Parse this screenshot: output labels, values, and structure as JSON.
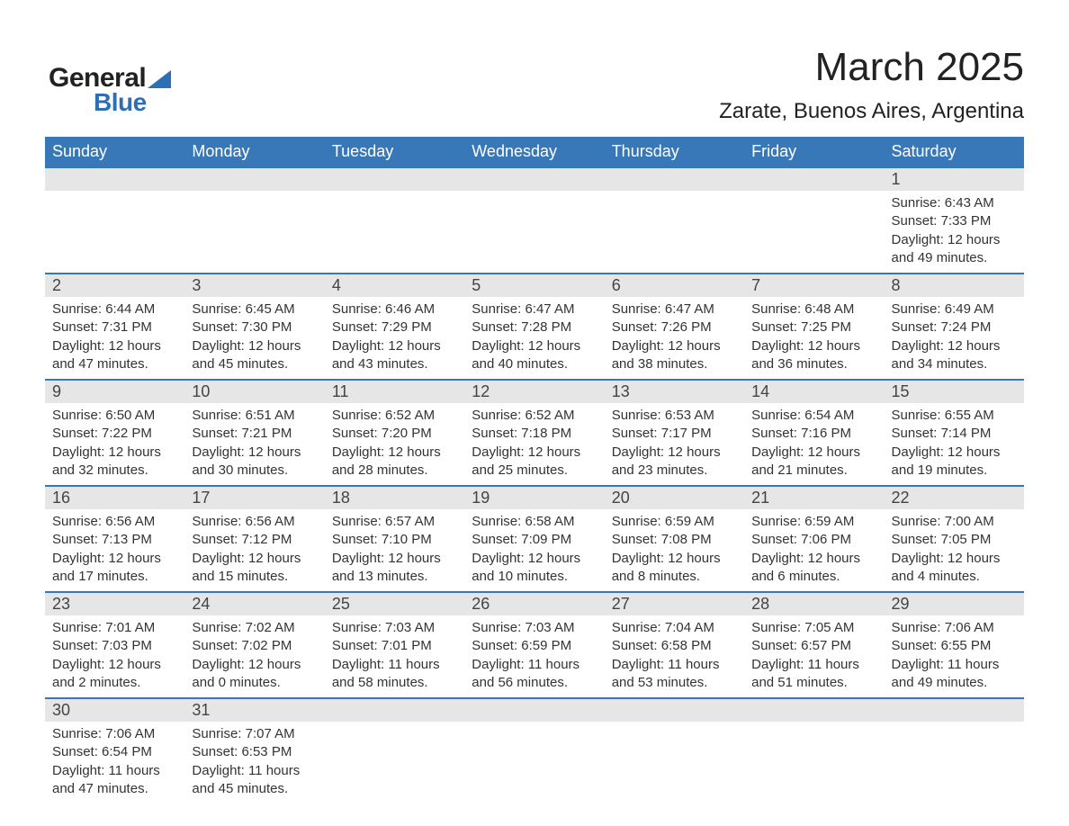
{
  "logo": {
    "text_general": "General",
    "text_blue": "Blue",
    "brand_color": "#2d6fb5"
  },
  "title": {
    "month": "March 2025",
    "location": "Zarate, Buenos Aires, Argentina"
  },
  "calendar": {
    "header_bg": "#3978b8",
    "header_fg": "#ffffff",
    "daynum_bg": "#e6e6e6",
    "rule_color": "#3978b8",
    "text_color": "#333333",
    "day_headers": [
      "Sunday",
      "Monday",
      "Tuesday",
      "Wednesday",
      "Thursday",
      "Friday",
      "Saturday"
    ],
    "weeks": [
      [
        null,
        null,
        null,
        null,
        null,
        null,
        {
          "n": "1",
          "sunrise": "Sunrise: 6:43 AM",
          "sunset": "Sunset: 7:33 PM",
          "day1": "Daylight: 12 hours",
          "day2": "and 49 minutes."
        }
      ],
      [
        {
          "n": "2",
          "sunrise": "Sunrise: 6:44 AM",
          "sunset": "Sunset: 7:31 PM",
          "day1": "Daylight: 12 hours",
          "day2": "and 47 minutes."
        },
        {
          "n": "3",
          "sunrise": "Sunrise: 6:45 AM",
          "sunset": "Sunset: 7:30 PM",
          "day1": "Daylight: 12 hours",
          "day2": "and 45 minutes."
        },
        {
          "n": "4",
          "sunrise": "Sunrise: 6:46 AM",
          "sunset": "Sunset: 7:29 PM",
          "day1": "Daylight: 12 hours",
          "day2": "and 43 minutes."
        },
        {
          "n": "5",
          "sunrise": "Sunrise: 6:47 AM",
          "sunset": "Sunset: 7:28 PM",
          "day1": "Daylight: 12 hours",
          "day2": "and 40 minutes."
        },
        {
          "n": "6",
          "sunrise": "Sunrise: 6:47 AM",
          "sunset": "Sunset: 7:26 PM",
          "day1": "Daylight: 12 hours",
          "day2": "and 38 minutes."
        },
        {
          "n": "7",
          "sunrise": "Sunrise: 6:48 AM",
          "sunset": "Sunset: 7:25 PM",
          "day1": "Daylight: 12 hours",
          "day2": "and 36 minutes."
        },
        {
          "n": "8",
          "sunrise": "Sunrise: 6:49 AM",
          "sunset": "Sunset: 7:24 PM",
          "day1": "Daylight: 12 hours",
          "day2": "and 34 minutes."
        }
      ],
      [
        {
          "n": "9",
          "sunrise": "Sunrise: 6:50 AM",
          "sunset": "Sunset: 7:22 PM",
          "day1": "Daylight: 12 hours",
          "day2": "and 32 minutes."
        },
        {
          "n": "10",
          "sunrise": "Sunrise: 6:51 AM",
          "sunset": "Sunset: 7:21 PM",
          "day1": "Daylight: 12 hours",
          "day2": "and 30 minutes."
        },
        {
          "n": "11",
          "sunrise": "Sunrise: 6:52 AM",
          "sunset": "Sunset: 7:20 PM",
          "day1": "Daylight: 12 hours",
          "day2": "and 28 minutes."
        },
        {
          "n": "12",
          "sunrise": "Sunrise: 6:52 AM",
          "sunset": "Sunset: 7:18 PM",
          "day1": "Daylight: 12 hours",
          "day2": "and 25 minutes."
        },
        {
          "n": "13",
          "sunrise": "Sunrise: 6:53 AM",
          "sunset": "Sunset: 7:17 PM",
          "day1": "Daylight: 12 hours",
          "day2": "and 23 minutes."
        },
        {
          "n": "14",
          "sunrise": "Sunrise: 6:54 AM",
          "sunset": "Sunset: 7:16 PM",
          "day1": "Daylight: 12 hours",
          "day2": "and 21 minutes."
        },
        {
          "n": "15",
          "sunrise": "Sunrise: 6:55 AM",
          "sunset": "Sunset: 7:14 PM",
          "day1": "Daylight: 12 hours",
          "day2": "and 19 minutes."
        }
      ],
      [
        {
          "n": "16",
          "sunrise": "Sunrise: 6:56 AM",
          "sunset": "Sunset: 7:13 PM",
          "day1": "Daylight: 12 hours",
          "day2": "and 17 minutes."
        },
        {
          "n": "17",
          "sunrise": "Sunrise: 6:56 AM",
          "sunset": "Sunset: 7:12 PM",
          "day1": "Daylight: 12 hours",
          "day2": "and 15 minutes."
        },
        {
          "n": "18",
          "sunrise": "Sunrise: 6:57 AM",
          "sunset": "Sunset: 7:10 PM",
          "day1": "Daylight: 12 hours",
          "day2": "and 13 minutes."
        },
        {
          "n": "19",
          "sunrise": "Sunrise: 6:58 AM",
          "sunset": "Sunset: 7:09 PM",
          "day1": "Daylight: 12 hours",
          "day2": "and 10 minutes."
        },
        {
          "n": "20",
          "sunrise": "Sunrise: 6:59 AM",
          "sunset": "Sunset: 7:08 PM",
          "day1": "Daylight: 12 hours",
          "day2": "and 8 minutes."
        },
        {
          "n": "21",
          "sunrise": "Sunrise: 6:59 AM",
          "sunset": "Sunset: 7:06 PM",
          "day1": "Daylight: 12 hours",
          "day2": "and 6 minutes."
        },
        {
          "n": "22",
          "sunrise": "Sunrise: 7:00 AM",
          "sunset": "Sunset: 7:05 PM",
          "day1": "Daylight: 12 hours",
          "day2": "and 4 minutes."
        }
      ],
      [
        {
          "n": "23",
          "sunrise": "Sunrise: 7:01 AM",
          "sunset": "Sunset: 7:03 PM",
          "day1": "Daylight: 12 hours",
          "day2": "and 2 minutes."
        },
        {
          "n": "24",
          "sunrise": "Sunrise: 7:02 AM",
          "sunset": "Sunset: 7:02 PM",
          "day1": "Daylight: 12 hours",
          "day2": "and 0 minutes."
        },
        {
          "n": "25",
          "sunrise": "Sunrise: 7:03 AM",
          "sunset": "Sunset: 7:01 PM",
          "day1": "Daylight: 11 hours",
          "day2": "and 58 minutes."
        },
        {
          "n": "26",
          "sunrise": "Sunrise: 7:03 AM",
          "sunset": "Sunset: 6:59 PM",
          "day1": "Daylight: 11 hours",
          "day2": "and 56 minutes."
        },
        {
          "n": "27",
          "sunrise": "Sunrise: 7:04 AM",
          "sunset": "Sunset: 6:58 PM",
          "day1": "Daylight: 11 hours",
          "day2": "and 53 minutes."
        },
        {
          "n": "28",
          "sunrise": "Sunrise: 7:05 AM",
          "sunset": "Sunset: 6:57 PM",
          "day1": "Daylight: 11 hours",
          "day2": "and 51 minutes."
        },
        {
          "n": "29",
          "sunrise": "Sunrise: 7:06 AM",
          "sunset": "Sunset: 6:55 PM",
          "day1": "Daylight: 11 hours",
          "day2": "and 49 minutes."
        }
      ],
      [
        {
          "n": "30",
          "sunrise": "Sunrise: 7:06 AM",
          "sunset": "Sunset: 6:54 PM",
          "day1": "Daylight: 11 hours",
          "day2": "and 47 minutes."
        },
        {
          "n": "31",
          "sunrise": "Sunrise: 7:07 AM",
          "sunset": "Sunset: 6:53 PM",
          "day1": "Daylight: 11 hours",
          "day2": "and 45 minutes."
        },
        null,
        null,
        null,
        null,
        null
      ]
    ]
  }
}
